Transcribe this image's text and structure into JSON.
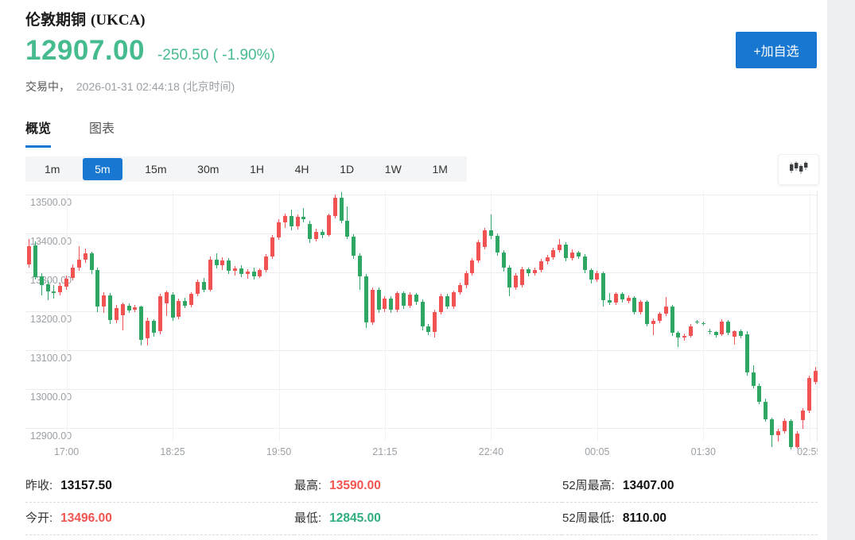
{
  "header": {
    "title_cn": "伦敦期铜",
    "title_symbol": "(UKCA)",
    "price": "12907.00",
    "change": "-250.50 ( -1.90%)",
    "status_prefix": "交易中，",
    "status_time": "2026-01-31 02:44:18 (北京时间)",
    "watchlist_button": "+加自选"
  },
  "colors": {
    "accent_blue": "#1777d1",
    "quote_green": "#46bb8e",
    "stat_red": "#f25450",
    "stat_green": "#2fae7d"
  },
  "tabs": [
    {
      "label": "概览",
      "active": true
    },
    {
      "label": "图表",
      "active": false
    }
  ],
  "periods": {
    "items": [
      "1m",
      "5m",
      "15m",
      "30m",
      "1H",
      "4H",
      "1D",
      "1W",
      "1M"
    ],
    "active": "5m"
  },
  "chart_data": {
    "type": "candlestick",
    "interval": "5m",
    "y_min": 12900,
    "y_max": 13500,
    "grid": true,
    "colors": {
      "up": "#f05352",
      "down": "#2fa764"
    },
    "y_ticks": [
      "13500.00",
      "13400.00",
      "13300.00",
      "13200.00",
      "13100.00",
      "13000.00",
      "12900.00"
    ],
    "x_ticks": [
      {
        "index": 6,
        "label": "17:00"
      },
      {
        "index": 23,
        "label": "18:25"
      },
      {
        "index": 40,
        "label": "19:50"
      },
      {
        "index": 57,
        "label": "21:15"
      },
      {
        "index": 74,
        "label": "22:40"
      },
      {
        "index": 91,
        "label": "00:05"
      },
      {
        "index": 108,
        "label": "01:30"
      },
      {
        "index": 125,
        "label": "02:55"
      }
    ],
    "candles": [
      [
        13320,
        13385,
        13312,
        13367
      ],
      [
        13370,
        13380,
        13282,
        13287
      ],
      [
        13290,
        13298,
        13240,
        13268
      ],
      [
        13270,
        13280,
        13228,
        13252
      ],
      [
        13252,
        13268,
        13232,
        13246
      ],
      [
        13248,
        13274,
        13240,
        13266
      ],
      [
        13264,
        13292,
        13256,
        13284
      ],
      [
        13286,
        13320,
        13280,
        13312
      ],
      [
        13312,
        13368,
        13304,
        13332
      ],
      [
        13332,
        13362,
        13324,
        13350
      ],
      [
        13348,
        13354,
        13296,
        13306
      ],
      [
        13306,
        13312,
        13198,
        13212
      ],
      [
        13212,
        13250,
        13196,
        13240
      ],
      [
        13240,
        13246,
        13168,
        13178
      ],
      [
        13178,
        13216,
        13170,
        13208
      ],
      [
        13190,
        13222,
        13150,
        13218
      ],
      [
        13214,
        13220,
        13196,
        13202
      ],
      [
        13204,
        13216,
        13198,
        13210
      ],
      [
        13212,
        13214,
        13112,
        13126
      ],
      [
        13130,
        13184,
        13112,
        13176
      ],
      [
        13176,
        13180,
        13134,
        13144
      ],
      [
        13148,
        13244,
        13140,
        13238
      ],
      [
        13220,
        13254,
        13188,
        13248
      ],
      [
        13242,
        13248,
        13176,
        13184
      ],
      [
        13186,
        13232,
        13180,
        13226
      ],
      [
        13226,
        13234,
        13208,
        13214
      ],
      [
        13216,
        13250,
        13210,
        13244
      ],
      [
        13244,
        13282,
        13238,
        13276
      ],
      [
        13276,
        13286,
        13248,
        13256
      ],
      [
        13256,
        13340,
        13252,
        13332
      ],
      [
        13332,
        13348,
        13310,
        13318
      ],
      [
        13318,
        13338,
        13306,
        13330
      ],
      [
        13330,
        13336,
        13296,
        13304
      ],
      [
        13304,
        13316,
        13292,
        13310
      ],
      [
        13310,
        13318,
        13288,
        13296
      ],
      [
        13296,
        13308,
        13284,
        13302
      ],
      [
        13302,
        13312,
        13282,
        13290
      ],
      [
        13290,
        13310,
        13286,
        13306
      ],
      [
        13306,
        13346,
        13300,
        13340
      ],
      [
        13340,
        13396,
        13334,
        13390
      ],
      [
        13390,
        13436,
        13384,
        13428
      ],
      [
        13428,
        13452,
        13414,
        13444
      ],
      [
        13444,
        13462,
        13408,
        13418
      ],
      [
        13418,
        13450,
        13410,
        13442
      ],
      [
        13442,
        13466,
        13428,
        13436
      ],
      [
        13424,
        13432,
        13376,
        13386
      ],
      [
        13386,
        13412,
        13380,
        13404
      ],
      [
        13404,
        13410,
        13388,
        13396
      ],
      [
        13396,
        13452,
        13392,
        13446
      ],
      [
        13444,
        13500,
        13438,
        13492
      ],
      [
        13492,
        13506,
        13426,
        13432
      ],
      [
        13432,
        13470,
        13386,
        13392
      ],
      [
        13392,
        13398,
        13334,
        13342
      ],
      [
        13342,
        13350,
        13256,
        13290
      ],
      [
        13290,
        13296,
        13158,
        13172
      ],
      [
        13172,
        13262,
        13166,
        13256
      ],
      [
        13256,
        13262,
        13196,
        13204
      ],
      [
        13206,
        13238,
        13198,
        13232
      ],
      [
        13232,
        13238,
        13196,
        13204
      ],
      [
        13204,
        13252,
        13198,
        13246
      ],
      [
        13246,
        13252,
        13206,
        13214
      ],
      [
        13214,
        13248,
        13208,
        13242
      ],
      [
        13242,
        13246,
        13216,
        13224
      ],
      [
        13224,
        13230,
        13152,
        13162
      ],
      [
        13162,
        13168,
        13138,
        13146
      ],
      [
        13146,
        13204,
        13132,
        13198
      ],
      [
        13198,
        13244,
        13192,
        13238
      ],
      [
        13238,
        13244,
        13206,
        13212
      ],
      [
        13212,
        13254,
        13206,
        13248
      ],
      [
        13248,
        13274,
        13242,
        13268
      ],
      [
        13268,
        13304,
        13260,
        13298
      ],
      [
        13298,
        13336,
        13292,
        13330
      ],
      [
        13330,
        13384,
        13324,
        13378
      ],
      [
        13366,
        13414,
        13360,
        13408
      ],
      [
        13408,
        13448,
        13386,
        13394
      ],
      [
        13394,
        13400,
        13342,
        13352
      ],
      [
        13352,
        13358,
        13302,
        13312
      ],
      [
        13312,
        13318,
        13238,
        13262
      ],
      [
        13262,
        13298,
        13256,
        13292
      ],
      [
        13268,
        13314,
        13262,
        13308
      ],
      [
        13308,
        13312,
        13290,
        13298
      ],
      [
        13298,
        13312,
        13292,
        13306
      ],
      [
        13306,
        13334,
        13300,
        13328
      ],
      [
        13328,
        13344,
        13320,
        13338
      ],
      [
        13338,
        13364,
        13332,
        13358
      ],
      [
        13358,
        13386,
        13352,
        13372
      ],
      [
        13372,
        13378,
        13328,
        13336
      ],
      [
        13336,
        13360,
        13330,
        13352
      ],
      [
        13352,
        13356,
        13334,
        13340
      ],
      [
        13340,
        13346,
        13298,
        13306
      ],
      [
        13306,
        13310,
        13272,
        13282
      ],
      [
        13282,
        13304,
        13276,
        13298
      ],
      [
        13298,
        13302,
        13212,
        13228
      ],
      [
        13228,
        13246,
        13216,
        13222
      ],
      [
        13222,
        13250,
        13216,
        13244
      ],
      [
        13244,
        13248,
        13222,
        13230
      ],
      [
        13226,
        13240,
        13220,
        13234
      ],
      [
        13234,
        13238,
        13192,
        13198
      ],
      [
        13198,
        13228,
        13192,
        13224
      ],
      [
        13224,
        13228,
        13162,
        13168
      ],
      [
        13168,
        13182,
        13138,
        13176
      ],
      [
        13176,
        13198,
        13170,
        13194
      ],
      [
        13194,
        13236,
        13188,
        13212
      ],
      [
        13212,
        13216,
        13136,
        13144
      ],
      [
        13144,
        13148,
        13108,
        13132
      ],
      [
        13132,
        13142,
        13124,
        13136
      ],
      [
        13136,
        13168,
        13132,
        13162
      ],
      [
        13174,
        13178,
        13168,
        13172
      ],
      [
        13170,
        13174,
        13164,
        13168
      ],
      [
        13150,
        13156,
        13140,
        13146
      ],
      [
        13146,
        13150,
        13132,
        13138
      ],
      [
        13140,
        13180,
        13136,
        13174
      ],
      [
        13174,
        13178,
        13138,
        13144
      ],
      [
        13134,
        13152,
        13114,
        13148
      ],
      [
        13148,
        13154,
        13130,
        13136
      ],
      [
        13140,
        13150,
        13034,
        13042
      ],
      [
        13042,
        13062,
        13002,
        13008
      ],
      [
        13008,
        13014,
        12962,
        12968
      ],
      [
        12968,
        12976,
        12916,
        12922
      ],
      [
        12922,
        12926,
        12850,
        12882
      ],
      [
        12882,
        12898,
        12866,
        12892
      ],
      [
        12892,
        12924,
        12886,
        12918
      ],
      [
        12918,
        12922,
        12845,
        12852
      ],
      [
        12852,
        12892,
        12846,
        12886
      ],
      [
        12920,
        12952,
        12898,
        12944
      ],
      [
        12944,
        13034,
        12938,
        13028
      ],
      [
        13018,
        13058,
        13012,
        13046
      ]
    ]
  },
  "stats": {
    "rows": [
      [
        {
          "label": "昨收:",
          "value": "13157.50"
        },
        {
          "label": "最高:",
          "value": "13590.00"
        },
        {
          "label": "52周最高:",
          "value": "13407.00"
        }
      ],
      [
        {
          "label": "今开:",
          "value": "13496.00"
        },
        {
          "label": "最低:",
          "value": "12845.00"
        },
        {
          "label": "52周最低:",
          "value": "8110.00"
        }
      ]
    ]
  }
}
